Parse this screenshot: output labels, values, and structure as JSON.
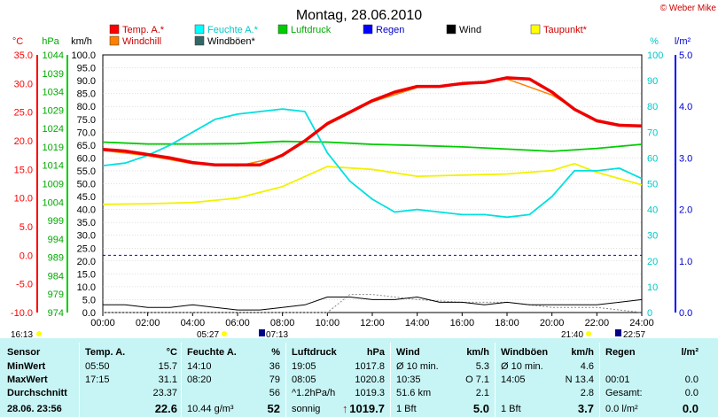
{
  "header": {
    "title": "Montag, 28.06.2010",
    "copyright": "© Weber Mike"
  },
  "legend": [
    {
      "label": "Temp. A.*",
      "color": "#ff0000",
      "text_color": "#cc0000"
    },
    {
      "label": "Feuchte A.*",
      "color": "#00ffff",
      "text_color": "#00c8c8"
    },
    {
      "label": "Luftdruck",
      "color": "#00cc00",
      "text_color": "#00aa00"
    },
    {
      "label": "Regen",
      "color": "#0000ff",
      "text_color": "#0000cc"
    },
    {
      "label": "Wind",
      "color": "#000000",
      "text_color": "#000000"
    },
    {
      "label": "Taupunkt*",
      "color": "#ffff00",
      "text_color": "#cc0000"
    },
    {
      "label": "Windchill",
      "color": "#ff8000",
      "text_color": "#cc0000"
    },
    {
      "label": "Windböen*",
      "color": "#336666",
      "text_color": "#000000"
    }
  ],
  "chart_data": {
    "type": "line",
    "x_ticks": [
      "00:00",
      "02:00",
      "04:00",
      "06:00",
      "08:00",
      "10:00",
      "12:00",
      "14:00",
      "16:00",
      "18:00",
      "20:00",
      "22:00",
      "24:00"
    ],
    "axes": {
      "temp": {
        "unit": "°C",
        "ticks": [
          "-10.0",
          "-5.0",
          "0.0",
          "5.0",
          "10.0",
          "15.0",
          "20.0",
          "25.0",
          "30.0",
          "35.0"
        ],
        "range": [
          -10,
          35
        ]
      },
      "pressure": {
        "unit": "hPa",
        "ticks": [
          "974",
          "979",
          "984",
          "989",
          "994",
          "999",
          "1004",
          "1009",
          "1014",
          "1019",
          "1024",
          "1029",
          "1034",
          "1039",
          "1044"
        ],
        "range": [
          974,
          1044
        ]
      },
      "wind": {
        "unit": "km/h",
        "ticks": [
          "0.0",
          "5.0",
          "10.0",
          "15.0",
          "20.0",
          "25.0",
          "30.0",
          "35.0",
          "40.0",
          "45.0",
          "50.0",
          "55.0",
          "60.0",
          "65.0",
          "70.0",
          "75.0",
          "80.0",
          "85.0",
          "90.0",
          "95.0",
          "100.0"
        ],
        "range": [
          0,
          100
        ]
      },
      "humidity": {
        "unit": "%",
        "ticks": [
          "0",
          "10",
          "20",
          "30",
          "40",
          "50",
          "60",
          "70",
          "80",
          "90",
          "100"
        ],
        "range": [
          0,
          100
        ]
      },
      "rain": {
        "unit": "l/m²",
        "ticks": [
          "0.0",
          "1.0",
          "2.0",
          "3.0",
          "4.0",
          "5.0"
        ],
        "range": [
          0,
          5
        ]
      }
    },
    "series": [
      {
        "name": "Temp. A.*",
        "axis": "temp",
        "color": "#ee0000",
        "x": [
          0,
          1,
          2,
          3,
          4,
          5,
          6,
          7,
          8,
          9,
          10,
          11,
          12,
          13,
          14,
          15,
          16,
          17,
          18,
          19,
          20,
          21,
          22,
          23,
          24
        ],
        "y": [
          18.5,
          18.2,
          17.6,
          17.0,
          16.2,
          15.8,
          15.8,
          15.8,
          17.5,
          20.0,
          23.0,
          25.0,
          27.0,
          28.5,
          29.5,
          29.5,
          30.0,
          30.2,
          31.0,
          30.8,
          28.5,
          25.5,
          23.5,
          22.7,
          22.6
        ]
      },
      {
        "name": "Windchill",
        "axis": "temp",
        "color": "#ff8000",
        "x": [
          0,
          2,
          4,
          6,
          8,
          10,
          12,
          14,
          16,
          18,
          20,
          22,
          24
        ],
        "y": [
          18.3,
          17.4,
          16.0,
          15.6,
          17.3,
          22.8,
          26.8,
          29.3,
          29.8,
          30.8,
          28.0,
          23.3,
          22.5
        ]
      },
      {
        "name": "Feuchte A.*",
        "axis": "humidity",
        "color": "#00e0e0",
        "x": [
          0,
          1,
          2,
          3,
          4,
          5,
          6,
          7,
          8,
          9,
          10,
          11,
          12,
          13,
          14,
          15,
          16,
          17,
          18,
          19,
          20,
          21,
          22,
          23,
          24
        ],
        "y": [
          57,
          58,
          61,
          65,
          70,
          75,
          77,
          78,
          79,
          78,
          62,
          51,
          44,
          39,
          40,
          39,
          38,
          38,
          37,
          38,
          45,
          55,
          55,
          56,
          52
        ]
      },
      {
        "name": "Luftdruck",
        "axis": "pressure",
        "color": "#00cc00",
        "x": [
          0,
          2,
          4,
          6,
          8,
          10,
          12,
          14,
          16,
          18,
          20,
          22,
          24
        ],
        "y": [
          1020.3,
          1019.8,
          1019.8,
          1019.9,
          1020.5,
          1020.3,
          1019.7,
          1019.4,
          1019.0,
          1018.4,
          1017.8,
          1018.6,
          1019.7
        ]
      },
      {
        "name": "Taupunkt*",
        "axis": "temp",
        "color": "#f2f200",
        "x": [
          0,
          2,
          4,
          6,
          8,
          10,
          12,
          14,
          16,
          18,
          20,
          21,
          22,
          24
        ],
        "y": [
          8.9,
          9.0,
          9.2,
          10.0,
          12.0,
          15.5,
          15.0,
          13.8,
          14.0,
          14.2,
          14.8,
          16.0,
          14.5,
          12.3
        ]
      },
      {
        "name": "Wind",
        "axis": "wind",
        "color": "#000000",
        "x": [
          0,
          1,
          2,
          3,
          4,
          5,
          6,
          7,
          8,
          9,
          10,
          11,
          12,
          13,
          14,
          15,
          16,
          17,
          18,
          19,
          20,
          21,
          22,
          23,
          24
        ],
        "y": [
          3,
          3,
          2,
          2,
          3,
          2,
          1,
          1,
          2,
          3,
          6,
          6,
          5,
          5,
          6,
          4,
          4,
          3,
          4,
          3,
          3,
          3,
          3,
          4,
          5
        ]
      },
      {
        "name": "Windböen*",
        "axis": "wind",
        "color": "#888888",
        "x": [
          0,
          2,
          4,
          6,
          8,
          10,
          11,
          12,
          14,
          16,
          18,
          20,
          22,
          24
        ],
        "y": [
          0,
          0,
          0,
          0,
          0,
          0,
          7,
          7,
          5,
          4,
          4,
          2,
          2,
          0
        ]
      }
    ],
    "markers": {
      "bottom_left": "16:13",
      "sunrise": "05:27",
      "moonrise": "07:13",
      "sunset": "21:40",
      "moonset": "22:57"
    }
  },
  "table": {
    "sensor": {
      "head": "Sensor",
      "rows": [
        "MinWert",
        "MaxWert",
        "Durchschnitt"
      ],
      "footer": "28.06. 23:56"
    },
    "temp": {
      "head": "Temp. A.",
      "unit": "°C",
      "min_time": "05:50",
      "min": "15.7",
      "max_time": "17:15",
      "max": "31.1",
      "avg": "23.37",
      "current": "22.6"
    },
    "humidity": {
      "head": "Feuchte A.",
      "unit": "%",
      "min_time": "14:10",
      "min": "36",
      "max_time": "08:20",
      "max": "79",
      "avg": "56",
      "abs": "10.44 g/m³",
      "current": "52"
    },
    "pressure": {
      "head": "Luftdruck",
      "unit": "hPa",
      "min_time": "19:05",
      "min": "1017.8",
      "max_time": "08:05",
      "max": "1020.8",
      "avg_note": "^1.2hPa/h",
      "avg": "1019.3",
      "status": "sonnig",
      "trend_arrow": "↑",
      "current": "1019.7"
    },
    "wind": {
      "head": "Wind",
      "unit": "km/h",
      "r1_label": "Ø 10 min.",
      "r1_val": "5.3",
      "r2_label": "10:35",
      "r2_val": "O 7.1",
      "r3_label": "51.6 km",
      "r3_val": "2.1",
      "r4_label": "1 Bft",
      "current": "5.0"
    },
    "gust": {
      "head": "Windböen",
      "unit": "km/h",
      "r1_label": "Ø 10 min.",
      "r1_val": "4.6",
      "r2_label": "14:05",
      "r2_val": "N 13.4",
      "r3_val": "2.8",
      "r4_label": "1 Bft",
      "current": "3.7"
    },
    "rain": {
      "head": "Regen",
      "unit": "l/m²",
      "r2_label": "00:01",
      "r2_val": "0.0",
      "r3_label": "Gesamt:",
      "r3_val": "0.0",
      "r4_label": "0.0 l/m²",
      "current": "0.0"
    }
  }
}
